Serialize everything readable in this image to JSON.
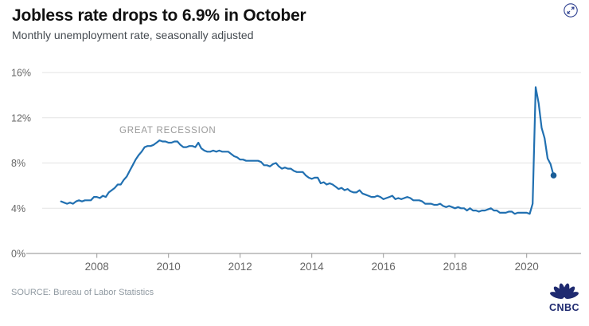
{
  "header": {
    "title": "Jobless rate drops to 6.9% in October",
    "subtitle": "Monthly unemployment rate, seasonally adjusted"
  },
  "controls": {
    "expand_icon": "expand-arrows-circle"
  },
  "chart_data": {
    "type": "line",
    "title": "Jobless rate drops to 6.9% in October",
    "subtitle": "Monthly unemployment rate, seasonally adjusted",
    "annotation": "GREAT RECESSION",
    "x_start": "2007-01",
    "x_end": "2020-10",
    "x_tick_labels": [
      "2008",
      "2010",
      "2012",
      "2014",
      "2016",
      "2018",
      "2020"
    ],
    "y_tick_labels": [
      "0%",
      "4%",
      "8%",
      "12%",
      "16%"
    ],
    "y_tick_values": [
      0,
      4,
      8,
      12,
      16
    ],
    "ylim": [
      0,
      16
    ],
    "grid": "horizontal",
    "legend": "none",
    "line_color": "#2170b1",
    "end_dot_color": "#1a5d97",
    "series": [
      {
        "name": "Monthly unemployment rate (%), Jan 2007 - Oct 2020",
        "values": [
          4.6,
          4.5,
          4.4,
          4.5,
          4.4,
          4.6,
          4.7,
          4.6,
          4.7,
          4.7,
          4.7,
          5.0,
          5.0,
          4.9,
          5.1,
          5.0,
          5.4,
          5.6,
          5.8,
          6.1,
          6.1,
          6.5,
          6.8,
          7.3,
          7.8,
          8.3,
          8.7,
          9.0,
          9.4,
          9.5,
          9.5,
          9.6,
          9.8,
          10.0,
          9.9,
          9.9,
          9.8,
          9.8,
          9.9,
          9.9,
          9.6,
          9.4,
          9.4,
          9.5,
          9.5,
          9.4,
          9.8,
          9.3,
          9.1,
          9.0,
          9.0,
          9.1,
          9.0,
          9.1,
          9.0,
          9.0,
          9.0,
          8.8,
          8.6,
          8.5,
          8.3,
          8.3,
          8.2,
          8.2,
          8.2,
          8.2,
          8.2,
          8.1,
          7.8,
          7.8,
          7.7,
          7.9,
          8.0,
          7.7,
          7.5,
          7.6,
          7.5,
          7.5,
          7.3,
          7.2,
          7.2,
          7.2,
          6.9,
          6.7,
          6.6,
          6.7,
          6.7,
          6.2,
          6.3,
          6.1,
          6.2,
          6.1,
          5.9,
          5.7,
          5.8,
          5.6,
          5.7,
          5.5,
          5.4,
          5.4,
          5.6,
          5.3,
          5.2,
          5.1,
          5.0,
          5.0,
          5.1,
          5.0,
          4.8,
          4.9,
          5.0,
          5.1,
          4.8,
          4.9,
          4.8,
          4.9,
          5.0,
          4.9,
          4.7,
          4.7,
          4.7,
          4.6,
          4.4,
          4.4,
          4.4,
          4.3,
          4.3,
          4.4,
          4.2,
          4.1,
          4.2,
          4.1,
          4.0,
          4.1,
          4.0,
          4.0,
          3.8,
          4.0,
          3.8,
          3.8,
          3.7,
          3.8,
          3.8,
          3.9,
          4.0,
          3.8,
          3.8,
          3.6,
          3.6,
          3.6,
          3.7,
          3.7,
          3.5,
          3.6,
          3.6,
          3.6,
          3.6,
          3.5,
          4.4,
          14.7,
          13.3,
          11.1,
          10.2,
          8.4,
          7.9,
          6.9
        ]
      }
    ]
  },
  "footer": {
    "source": "SOURCE: Bureau of Labor Statistics",
    "logo_text": "CNBC"
  }
}
